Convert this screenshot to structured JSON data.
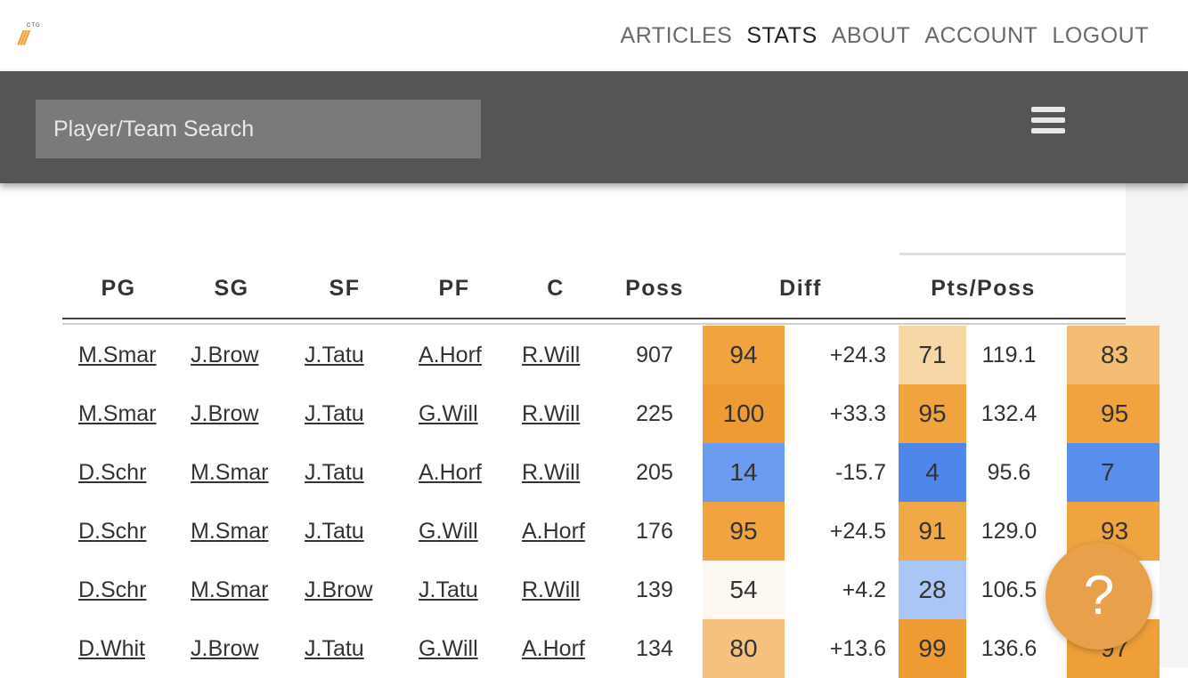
{
  "logo": {
    "small_text": "CTG",
    "mark": "///"
  },
  "nav": {
    "items": [
      "ARTICLES",
      "STATS",
      "ABOUT",
      "ACCOUNT",
      "LOGOUT"
    ],
    "active": "STATS"
  },
  "search": {
    "placeholder": "Player/Team Search"
  },
  "menu_icon": "hamburger-icon",
  "help_icon": "?",
  "table": {
    "headers": {
      "pg": "PG",
      "sg": "SG",
      "sf": "SF",
      "pf": "PF",
      "c": "C",
      "poss": "Poss",
      "diff": "Diff",
      "pts_poss": "Pts/Poss"
    },
    "rows": [
      {
        "pg": "M.Smar",
        "sg": "J.Brow",
        "sf": "J.Tatu",
        "pf": "A.Horf",
        "c": "R.Will",
        "poss": "907",
        "diff_pct": "94",
        "diff": "+24.3",
        "pts_pct": "71",
        "pts": "119.1",
        "next_pct": "83",
        "colors": {
          "diff": "#f0a33f",
          "pts": "#f8d7a7",
          "next": "#f3bd74"
        }
      },
      {
        "pg": "M.Smar",
        "sg": "J.Brow",
        "sf": "J.Tatu",
        "pf": "G.Will",
        "c": "R.Will",
        "poss": "225",
        "diff_pct": "100",
        "diff": "+33.3",
        "pts_pct": "95",
        "pts": "132.4",
        "next_pct": "95",
        "colors": {
          "diff": "#ee9b33",
          "pts": "#f0a33f",
          "next": "#f0a33f"
        }
      },
      {
        "pg": "D.Schr",
        "sg": "M.Smar",
        "sf": "J.Tatu",
        "pf": "A.Horf",
        "c": "R.Will",
        "poss": "205",
        "diff_pct": "14",
        "diff": "-15.7",
        "pts_pct": "4",
        "pts": "95.6",
        "next_pct": "7",
        "colors": {
          "diff": "#6b9cef",
          "pts": "#4f86ea",
          "next": "#5a8eec"
        }
      },
      {
        "pg": "D.Schr",
        "sg": "M.Smar",
        "sf": "J.Tatu",
        "pf": "G.Will",
        "c": "A.Horf",
        "poss": "176",
        "diff_pct": "95",
        "diff": "+24.5",
        "pts_pct": "91",
        "pts": "129.0",
        "next_pct": "93",
        "colors": {
          "diff": "#f0a33f",
          "pts": "#f1a947",
          "next": "#f0a43f"
        }
      },
      {
        "pg": "D.Schr",
        "sg": "M.Smar",
        "sf": "J.Brow",
        "pf": "J.Tatu",
        "c": "R.Will",
        "poss": "139",
        "diff_pct": "54",
        "diff": "+4.2",
        "pts_pct": "28",
        "pts": "106.5",
        "next_pct": "",
        "colors": {
          "diff": "#fdf8f0",
          "pts": "#a9c6f6",
          "next": "#ffffff"
        }
      },
      {
        "pg": "D.Whit",
        "sg": "J.Brow",
        "sf": "J.Tatu",
        "pf": "G.Will",
        "c": "A.Horf",
        "poss": "134",
        "diff_pct": "80",
        "diff": "+13.6",
        "pts_pct": "99",
        "pts": "136.6",
        "next_pct": "97",
        "colors": {
          "diff": "#f4c27e",
          "pts": "#ee9b33",
          "next": "#ef9f38"
        }
      }
    ]
  }
}
